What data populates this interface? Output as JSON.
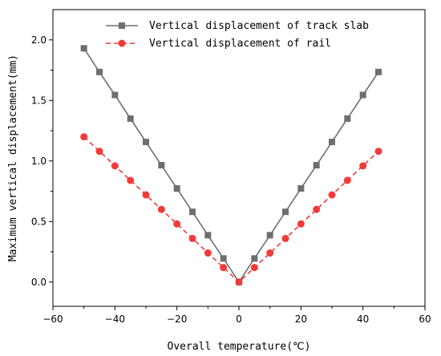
{
  "chart_data": {
    "type": "line",
    "title": "",
    "xlabel": "Overall temperature(℃)",
    "ylabel": "Maximum vertical displacement(mm)",
    "xlim": [
      -60,
      60
    ],
    "ylim": [
      -0.2,
      2.25
    ],
    "xticks": [
      -60,
      -40,
      -20,
      0,
      20,
      40,
      60
    ],
    "yticks": [
      0.0,
      0.5,
      1.0,
      1.5,
      2.0
    ],
    "xtick_labels": [
      "−60",
      "−40",
      "−20",
      "0",
      "20",
      "40",
      "60"
    ],
    "ytick_labels": [
      "0.0",
      "0.5",
      "1.0",
      "1.5",
      "2.0"
    ],
    "grid": false,
    "legend_position": "top-right",
    "x": [
      -50,
      -45,
      -40,
      -35,
      -30,
      -25,
      -20,
      -15,
      -10,
      -5,
      0,
      5,
      10,
      15,
      20,
      25,
      30,
      35,
      40,
      45
    ],
    "series": [
      {
        "name": "Vertical displacement of track slab",
        "color": "#6e6e6e",
        "marker": "square",
        "line_style": "solid",
        "values": [
          1.93,
          1.735,
          1.545,
          1.35,
          1.157,
          0.965,
          0.773,
          0.58,
          0.387,
          0.195,
          0.0,
          0.195,
          0.387,
          0.58,
          0.773,
          0.965,
          1.157,
          1.35,
          1.545,
          1.735
        ]
      },
      {
        "name": "Vertical displacement of rail",
        "color": "#f23a3a",
        "marker": "circle",
        "line_style": "dashed",
        "values": [
          1.2,
          1.08,
          0.96,
          0.84,
          0.72,
          0.6,
          0.48,
          0.36,
          0.24,
          0.12,
          0.0,
          0.12,
          0.24,
          0.36,
          0.48,
          0.6,
          0.72,
          0.84,
          0.96,
          1.08
        ]
      }
    ]
  }
}
